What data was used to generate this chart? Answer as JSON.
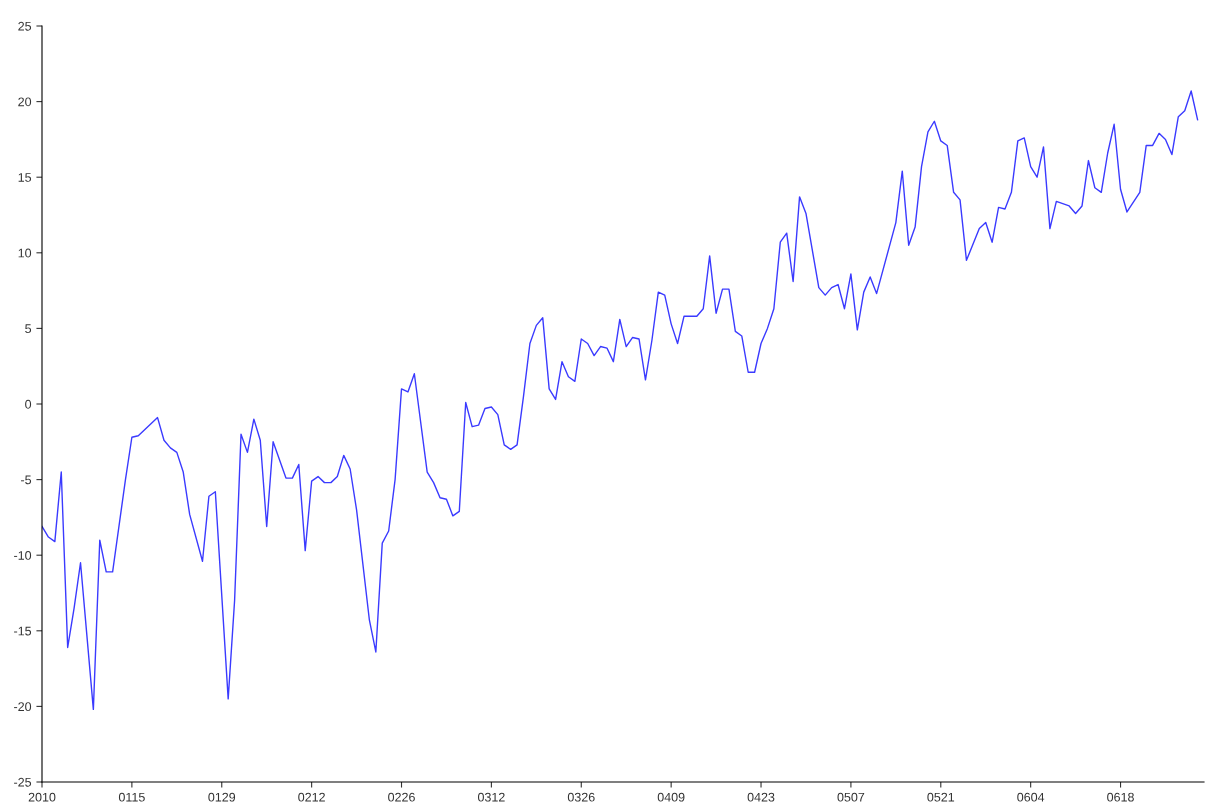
{
  "chart_data": {
    "type": "line",
    "x": [
      "2010-01-01",
      "2010-01-02",
      "2010-01-03",
      "2010-01-04",
      "2010-01-05",
      "2010-01-06",
      "2010-01-07",
      "2010-01-09",
      "2010-01-10",
      "2010-01-11",
      "2010-01-12",
      "2010-01-14",
      "2010-01-15",
      "2010-01-16",
      "2010-01-19",
      "2010-01-20",
      "2010-01-21",
      "2010-01-22",
      "2010-01-23",
      "2010-01-24",
      "2010-01-26",
      "2010-01-27",
      "2010-01-28",
      "2010-01-30",
      "2010-01-31",
      "2010-02-01",
      "2010-02-02",
      "2010-02-03",
      "2010-02-04",
      "2010-02-05",
      "2010-02-06",
      "2010-02-08",
      "2010-02-09",
      "2010-02-10",
      "2010-02-11",
      "2010-02-12",
      "2010-02-13",
      "2010-02-14",
      "2010-02-15",
      "2010-02-16",
      "2010-02-17",
      "2010-02-18",
      "2010-02-19",
      "2010-02-21",
      "2010-02-22",
      "2010-02-23",
      "2010-02-24",
      "2010-02-25",
      "2010-02-26",
      "2010-02-27",
      "2010-02-28",
      "2010-03-02",
      "2010-03-03",
      "2010-03-04",
      "2010-03-05",
      "2010-03-06",
      "2010-03-07",
      "2010-03-08",
      "2010-03-09",
      "2010-03-10",
      "2010-03-11",
      "2010-03-12",
      "2010-03-13",
      "2010-03-14",
      "2010-03-15",
      "2010-03-16",
      "2010-03-17",
      "2010-03-18",
      "2010-03-19",
      "2010-03-20",
      "2010-03-21",
      "2010-03-22",
      "2010-03-23",
      "2010-03-24",
      "2010-03-25",
      "2010-03-26",
      "2010-03-27",
      "2010-03-28",
      "2010-03-29",
      "2010-03-30",
      "2010-03-31",
      "2010-04-01",
      "2010-04-02",
      "2010-04-03",
      "2010-04-04",
      "2010-04-05",
      "2010-04-06",
      "2010-04-07",
      "2010-04-08",
      "2010-04-09",
      "2010-04-10",
      "2010-04-11",
      "2010-04-13",
      "2010-04-14",
      "2010-04-15",
      "2010-04-16",
      "2010-04-17",
      "2010-04-18",
      "2010-04-19",
      "2010-04-20",
      "2010-04-21",
      "2010-04-22",
      "2010-04-23",
      "2010-04-24",
      "2010-04-25",
      "2010-04-26",
      "2010-04-27",
      "2010-04-28",
      "2010-04-29",
      "2010-04-30",
      "2010-05-02",
      "2010-05-03",
      "2010-05-04",
      "2010-05-05",
      "2010-05-06",
      "2010-05-07",
      "2010-05-08",
      "2010-05-09",
      "2010-05-10",
      "2010-05-11",
      "2010-05-14",
      "2010-05-15",
      "2010-05-16",
      "2010-05-17",
      "2010-05-18",
      "2010-05-19",
      "2010-05-20",
      "2010-05-21",
      "2010-05-22",
      "2010-05-23",
      "2010-05-24",
      "2010-05-25",
      "2010-05-27",
      "2010-05-28",
      "2010-05-29",
      "2010-05-30",
      "2010-05-31",
      "2010-06-01",
      "2010-06-02",
      "2010-06-03",
      "2010-06-04",
      "2010-06-05",
      "2010-06-06",
      "2010-06-07",
      "2010-06-08",
      "2010-06-10",
      "2010-06-11",
      "2010-06-12",
      "2010-06-13",
      "2010-06-14",
      "2010-06-15",
      "2010-06-16",
      "2010-06-17",
      "2010-06-18",
      "2010-06-19",
      "2010-06-21",
      "2010-06-22",
      "2010-06-23",
      "2010-06-24",
      "2010-06-25",
      "2010-06-26",
      "2010-06-27",
      "2010-06-28",
      "2010-06-29",
      "2010-06-30"
    ],
    "series": [
      {
        "color": "#3a3aff",
        "values": [
          -8.1,
          -8.8,
          -9.1,
          -4.5,
          -16.1,
          -13.5,
          -10.5,
          -20.2,
          -9,
          -11.1,
          -11.1,
          -5,
          -2.2,
          -2.1,
          -0.9,
          -2.4,
          -2.9,
          -3.2,
          -4.5,
          -7.3,
          -10.4,
          -6.1,
          -5.8,
          -19.5,
          -13,
          -2,
          -3.2,
          -1,
          -2.4,
          -8.1,
          -2.5,
          -4.9,
          -4.9,
          -4,
          -9.7,
          -5.1,
          -4.8,
          -5.2,
          -5.2,
          -4.8,
          -3.4,
          -4.3,
          -7,
          -14.3,
          -16.4,
          -9.2,
          -8.4,
          -5,
          1,
          0.8,
          2,
          -4.5,
          -5.2,
          -6.2,
          -6.3,
          -7.4,
          -7.1,
          0.1,
          -1.5,
          -1.4,
          -0.3,
          -0.2,
          -0.7,
          -2.7,
          -3,
          -2.7,
          0.5,
          4,
          5.2,
          5.7,
          1,
          0.3,
          2.8,
          1.8,
          1.5,
          4.3,
          4,
          3.2,
          3.8,
          3.7,
          2.8,
          5.6,
          3.8,
          4.4,
          4.3,
          1.6,
          4.2,
          7.4,
          7.2,
          5.3,
          4,
          5.8,
          5.8,
          6.3,
          9.8,
          6,
          7.6,
          7.6,
          4.8,
          4.5,
          2.1,
          2.1,
          4,
          5,
          6.3,
          10.7,
          11.3,
          8.1,
          13.7,
          12.6,
          7.7,
          7.2,
          7.7,
          7.9,
          6.3,
          8.6,
          4.9,
          7.4,
          8.4,
          7.3,
          12,
          15.4,
          10.5,
          11.7,
          15.7,
          18,
          18.7,
          17.4,
          17.1,
          14,
          13.5,
          9.5,
          11.6,
          12,
          10.7,
          13,
          12.9,
          14,
          17.4,
          17.6,
          15.7,
          15,
          17,
          11.6,
          13.4,
          13.1,
          12.6,
          13.1,
          16.1,
          14.3,
          14,
          16.6,
          18.5,
          14.2,
          12.7,
          14,
          17.1,
          17.1,
          17.9,
          17.5,
          16.5,
          19,
          19.4,
          20.7,
          18.8
        ]
      }
    ],
    "xlim": [
      "2010-01-01",
      "2010-07-01"
    ],
    "xticks": [
      {
        "value": "2010-01-01",
        "label": "2010"
      },
      {
        "value": "2010-01-15",
        "label": "0115"
      },
      {
        "value": "2010-01-29",
        "label": "0129"
      },
      {
        "value": "2010-02-12",
        "label": "0212"
      },
      {
        "value": "2010-02-26",
        "label": "0226"
      },
      {
        "value": "2010-03-12",
        "label": "0312"
      },
      {
        "value": "2010-03-26",
        "label": "0326"
      },
      {
        "value": "2010-04-09",
        "label": "0409"
      },
      {
        "value": "2010-04-23",
        "label": "0423"
      },
      {
        "value": "2010-05-07",
        "label": "0507"
      },
      {
        "value": "2010-05-21",
        "label": "0521"
      },
      {
        "value": "2010-06-04",
        "label": "0604"
      },
      {
        "value": "2010-06-18",
        "label": "0618"
      }
    ],
    "ylim": [
      -25,
      25
    ],
    "yticks": [
      -25,
      -20,
      -15,
      -10,
      -5,
      0,
      5,
      10,
      15,
      20,
      25
    ],
    "grid": false,
    "marker": "none",
    "line_style": "solid"
  }
}
